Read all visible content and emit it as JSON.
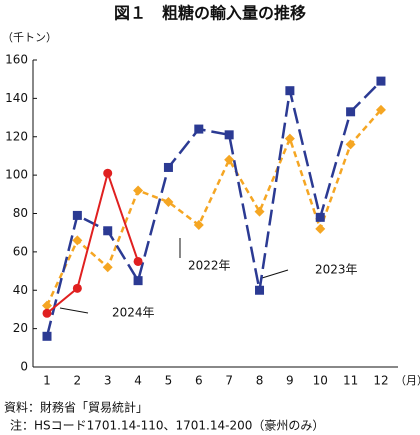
{
  "chart_data": {
    "type": "line",
    "title": "図１　粗糖の輸入量の推移",
    "y_label": "（千トン）",
    "x_label": "（月）",
    "categories": [
      "1",
      "2",
      "3",
      "4",
      "5",
      "6",
      "7",
      "8",
      "9",
      "10",
      "11",
      "12"
    ],
    "series": [
      {
        "name": "2022年",
        "color": "#f5a623",
        "line_style": "dashed",
        "marker": "diamond",
        "values": [
          32,
          66,
          52,
          92,
          86,
          74,
          108,
          81,
          119,
          72,
          116,
          134
        ]
      },
      {
        "name": "2023年",
        "color": "#2b3a93",
        "line_style": "long-dashed",
        "marker": "square",
        "values": [
          16,
          79,
          71,
          45,
          104,
          124,
          121,
          40,
          144,
          78,
          133,
          149
        ]
      },
      {
        "name": "2024年",
        "color": "#e02020",
        "line_style": "solid",
        "marker": "circle",
        "values": [
          28,
          41,
          101,
          55,
          null,
          null,
          null,
          null,
          null,
          null,
          null,
          null
        ]
      }
    ],
    "ylim": [
      0,
      160
    ],
    "yticks": [
      0,
      20,
      40,
      60,
      80,
      100,
      120,
      140,
      160
    ],
    "grid": false,
    "source": "資料：財務省「貿易統計」",
    "note": "注：HSコード1701.14-110、1701.14-200（豪州のみ）"
  }
}
